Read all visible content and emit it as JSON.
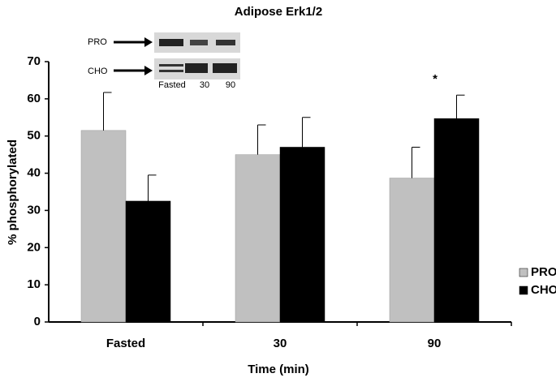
{
  "chart_data": {
    "type": "bar",
    "title": "Adipose Erk1/2",
    "x_label": "Time (min)",
    "y_label": "% phosphorylated",
    "categories": [
      "Fasted",
      "30",
      "90"
    ],
    "series": [
      {
        "name": "PRO",
        "color": "#c0c0c0",
        "values": [
          51.5,
          45,
          38.7
        ],
        "errors": [
          10.2,
          8,
          8.3
        ]
      },
      {
        "name": "CHO",
        "color": "#000000",
        "values": [
          32.5,
          47,
          54.7
        ],
        "errors": [
          7,
          8,
          6.3
        ]
      }
    ],
    "ylim": [
      0,
      70
    ],
    "yticks": [
      0,
      10,
      20,
      30,
      40,
      50,
      60,
      70
    ],
    "grid": false,
    "legend": "right",
    "annotation": "*",
    "inset": {
      "rows": [
        "PRO",
        "CHO"
      ],
      "lanes": [
        "Fasted",
        "30",
        "90"
      ]
    }
  }
}
